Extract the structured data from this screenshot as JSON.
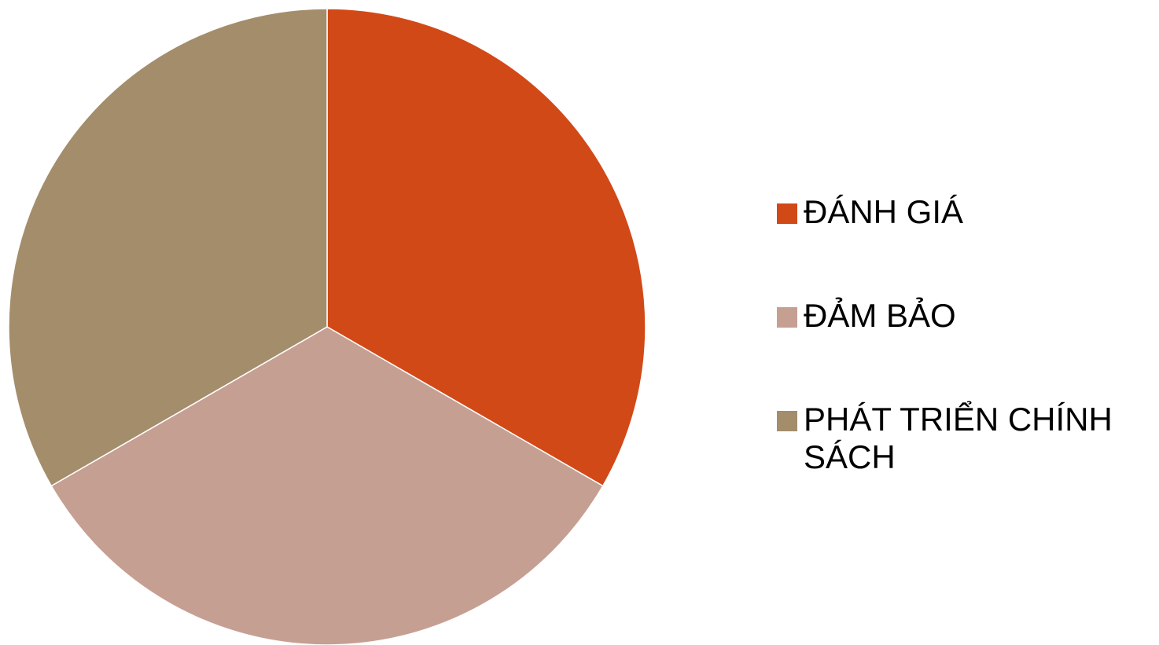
{
  "chart_data": {
    "type": "pie",
    "title": "",
    "legend_position": "right",
    "slices": [
      {
        "label": "ĐÁNH GIÁ",
        "value": 33.3,
        "color": "#D24918"
      },
      {
        "label": "ĐẢM BẢO",
        "value": 33.3,
        "color": "#C69F93"
      },
      {
        "label": "PHÁT TRIỂN CHÍNH SÁCH",
        "value": 33.3,
        "color": "#A48D6B"
      }
    ]
  }
}
